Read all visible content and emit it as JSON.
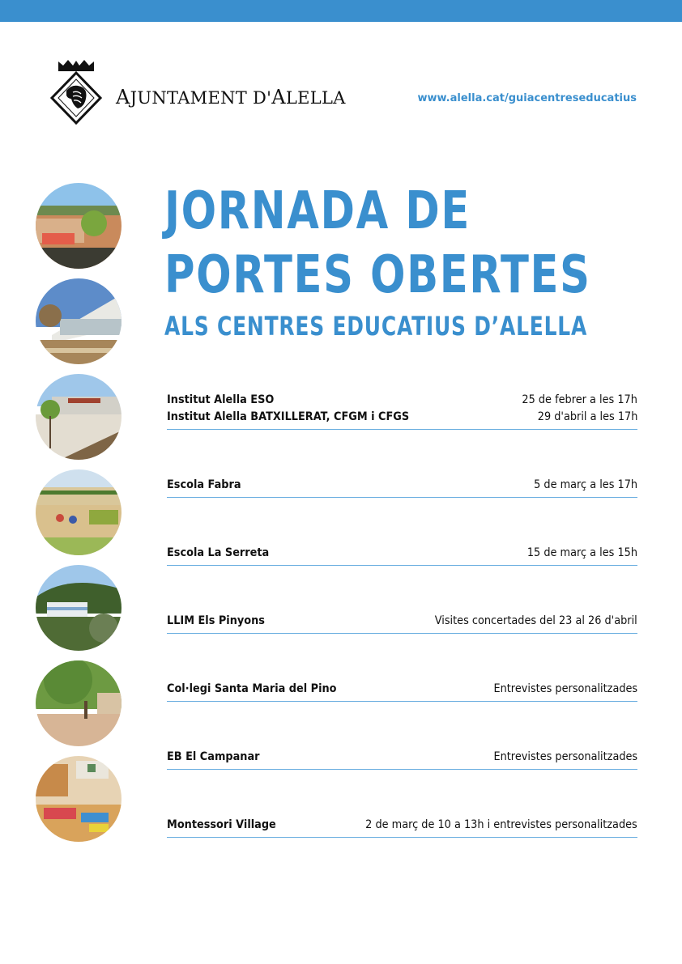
{
  "header": {
    "organization_small": "JUNTAMENT D'",
    "organization_cap1": "A",
    "organization_cap2": "A",
    "organization_tail": "LELLA",
    "url": "www.alella.cat/guiacentreseducatius"
  },
  "title": {
    "line1": "JORNADA DE",
    "line2": "PORTES  OBERTES",
    "line3": "ALS CENTRES EDUCATIUS D’ALELLA"
  },
  "events": [
    {
      "lines": [
        {
          "name": "Institut Alella ESO",
          "date": "25 de febrer a les 17h"
        },
        {
          "name": "Institut Alella BATXILLERAT, CFGM i CFGS",
          "date": "29 d'abril a les 17h"
        }
      ]
    },
    {
      "lines": [
        {
          "name": "Escola Fabra",
          "date": "5 de març a les 17h"
        }
      ]
    },
    {
      "lines": [
        {
          "name": "Escola La Serreta",
          "date": "15 de març a les 15h"
        }
      ]
    },
    {
      "lines": [
        {
          "name": "LLIM Els Pinyons",
          "date": "Visites concertades del 23 al 26 d'abril"
        }
      ]
    },
    {
      "lines": [
        {
          "name": "Col·legi Santa Maria del Pino",
          "date": "Entrevistes personalitzades"
        }
      ]
    },
    {
      "lines": [
        {
          "name": "EB El Campanar",
          "date": "Entrevistes personalitzades"
        }
      ]
    },
    {
      "lines": [
        {
          "name": "Montessori Village",
          "date": "2 de març de 10 a 13h i entrevistes personalitzades"
        }
      ]
    }
  ],
  "colors": {
    "accent": "#3a8fce",
    "divider": "#6aaee0",
    "text": "#111111"
  },
  "icons": {
    "logo": "alella-coat-of-arms-icon"
  }
}
